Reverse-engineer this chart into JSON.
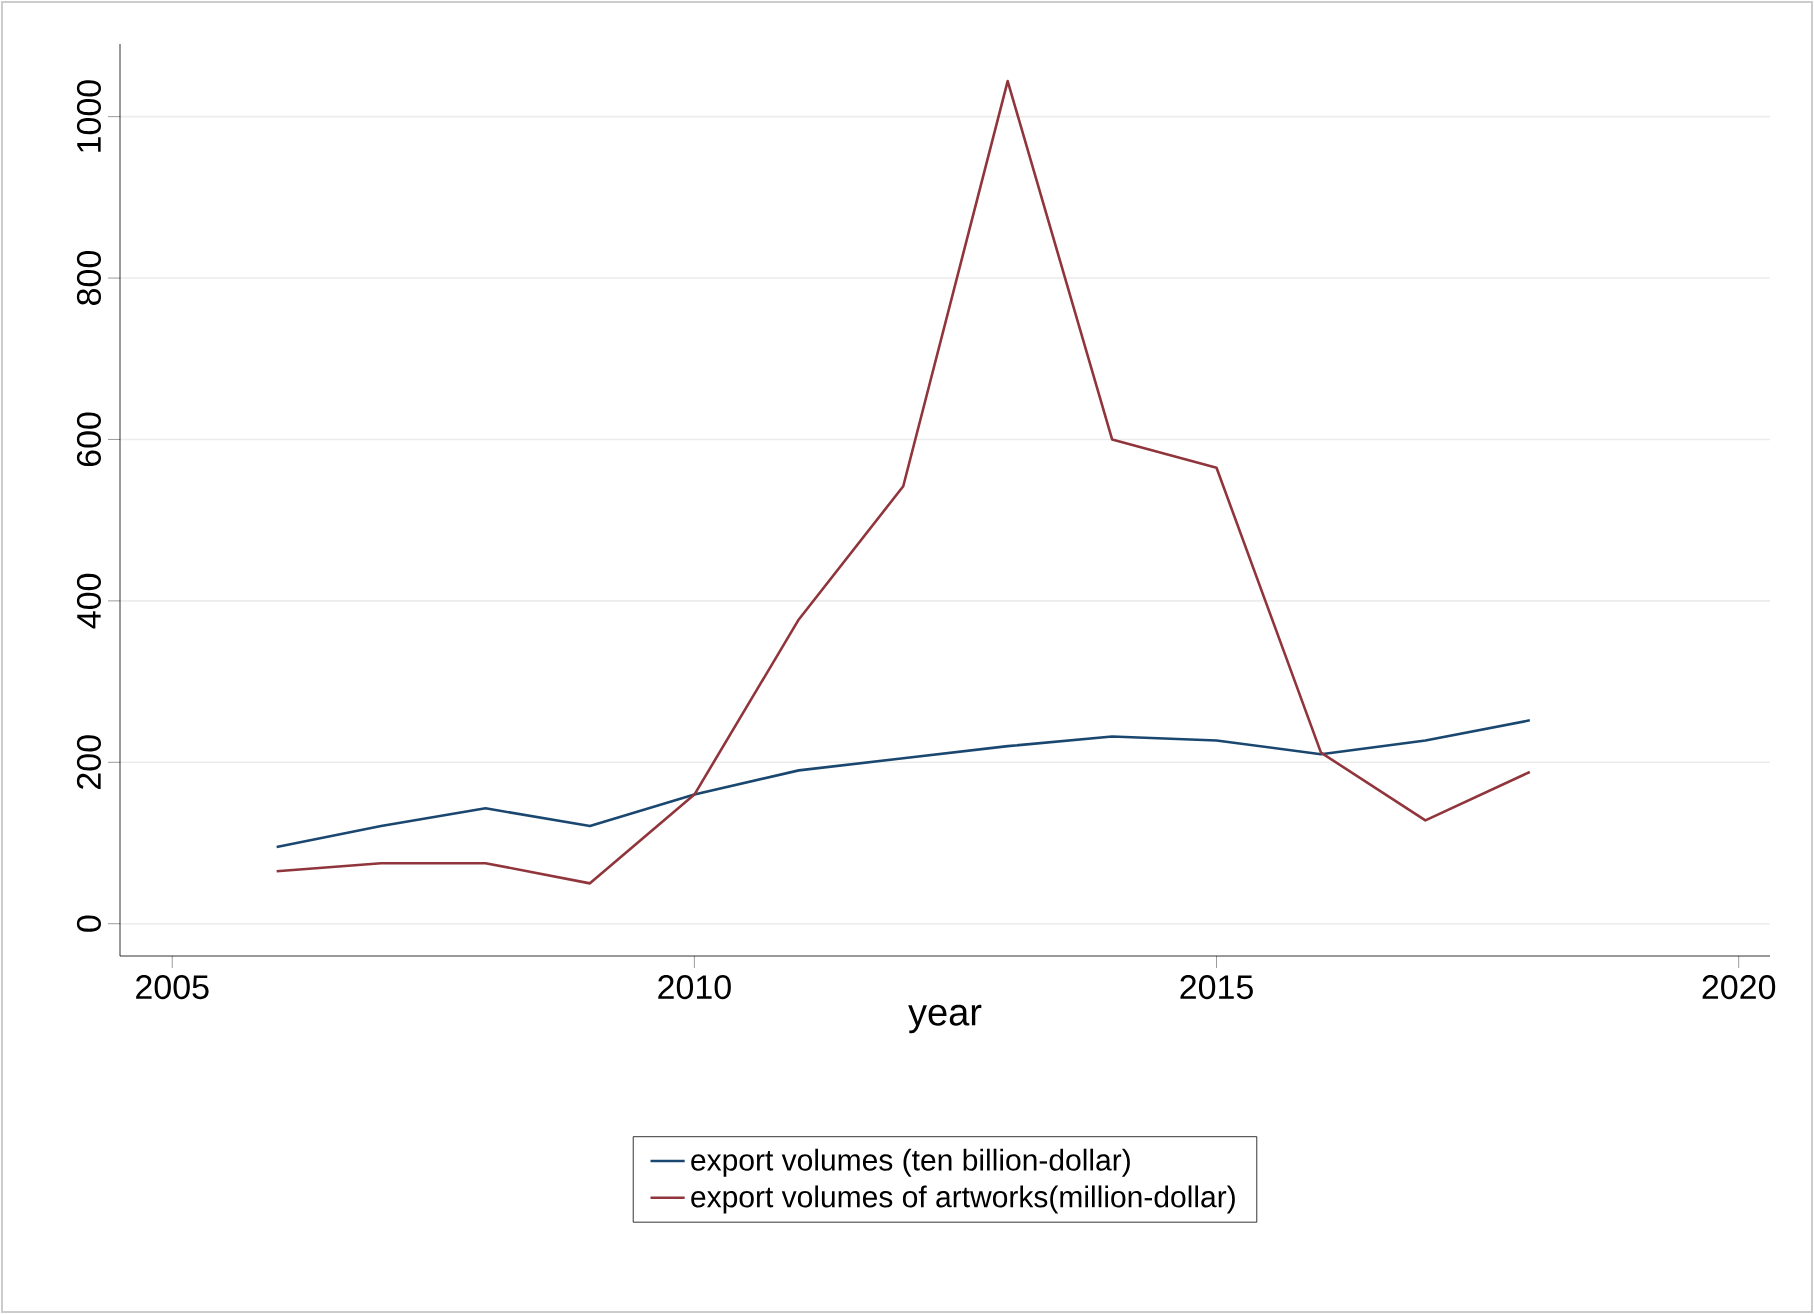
{
  "chart_data": {
    "type": "line",
    "xlabel": "year",
    "x": [
      2006,
      2007,
      2008,
      2009,
      2010,
      2011,
      2012,
      2013,
      2014,
      2015,
      2016,
      2017,
      2018
    ],
    "series": [
      {
        "name": "export volumes (ten billion-dollar)",
        "color": "#1a476f",
        "values": [
          95,
          121,
          143,
          121,
          160,
          190,
          205,
          220,
          232,
          227,
          210,
          227,
          252
        ]
      },
      {
        "name": "export volumes of artworks(million-dollar)",
        "color": "#90353b",
        "values": [
          65,
          75,
          75,
          50,
          160,
          377,
          542,
          1044,
          600,
          565,
          212,
          128,
          188
        ]
      }
    ],
    "xlim": [
      2004.5,
      2020.3
    ],
    "xticks": [
      2005,
      2010,
      2015,
      2020
    ],
    "ylim": [
      -40,
      1090
    ],
    "yticks": [
      0,
      200,
      400,
      600,
      800,
      1000
    ],
    "grid": "y",
    "legend": "bottom",
    "marker": "none",
    "line_style": "solid"
  }
}
